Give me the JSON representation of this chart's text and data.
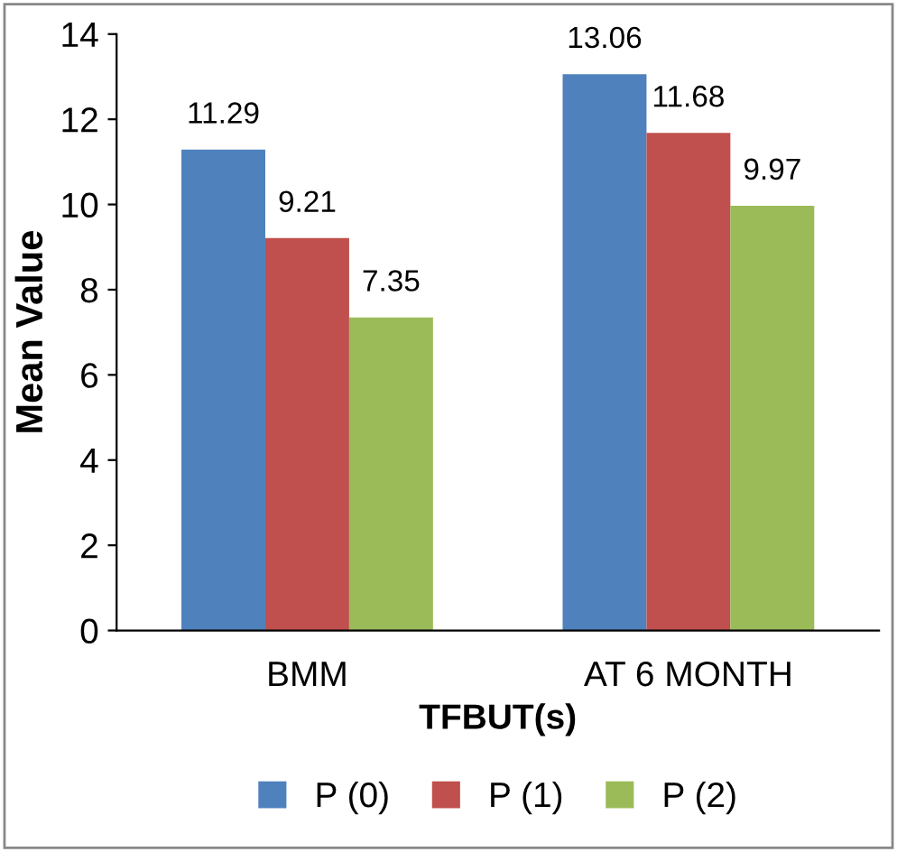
{
  "chart_data": {
    "type": "bar",
    "xlabel": "TFBUT(s)",
    "ylabel": "Mean Value",
    "categories": [
      "BMM",
      "AT 6 MONTH"
    ],
    "series": [
      {
        "name": "P (0)",
        "color": "#4f81bd",
        "values": [
          11.29,
          13.06
        ]
      },
      {
        "name": "P (1)",
        "color": "#c0504d",
        "values": [
          9.21,
          11.68
        ]
      },
      {
        "name": "P (2)",
        "color": "#9bbb59",
        "values": [
          7.35,
          9.97
        ]
      }
    ],
    "ylim": [
      0,
      14
    ],
    "yticks": [
      0,
      2,
      4,
      6,
      8,
      10,
      12,
      14
    ],
    "grid": false,
    "legend": "bottom",
    "data_labels": true
  }
}
